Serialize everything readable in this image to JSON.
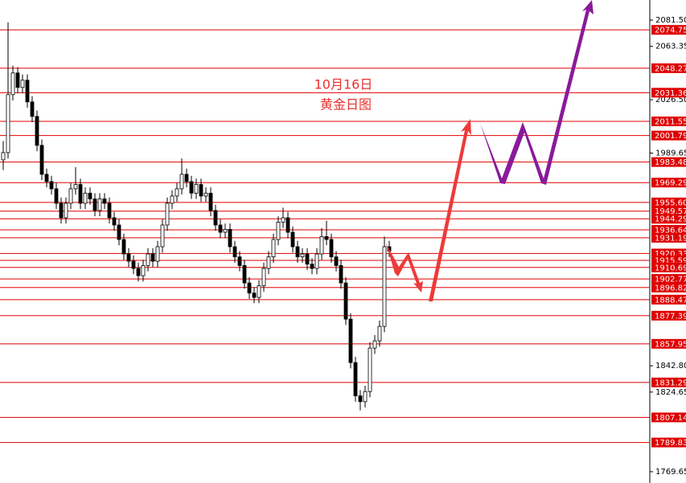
{
  "chart_data": {
    "type": "candlestick",
    "title": "10月16日",
    "subtitle": "黄金日图",
    "ylim": [
      1761.85,
      2095.37
    ],
    "yticks": [
      {
        "value": 2081.5,
        "label": "2081.50"
      },
      {
        "value": 2063.35,
        "label": "2063.35"
      },
      {
        "value": 2026.5,
        "label": "2026.50"
      },
      {
        "value": 1989.65,
        "label": "1989.65"
      },
      {
        "value": 1842.8,
        "label": "1842.80"
      },
      {
        "value": 1824.65,
        "label": "1824.65"
      },
      {
        "value": 1769.65,
        "label": "1769.65"
      }
    ],
    "levels": [
      {
        "value": 2074.75,
        "label": "2074.75"
      },
      {
        "value": 2048.27,
        "label": "2048.27"
      },
      {
        "value": 2031.36,
        "label": "2031.36"
      },
      {
        "value": 2011.55,
        "label": "2011.55"
      },
      {
        "value": 2001.79,
        "label": "2001.79"
      },
      {
        "value": 1983.48,
        "label": "1983.48"
      },
      {
        "value": 1969.29,
        "label": "1969.29"
      },
      {
        "value": 1955.6,
        "label": "1955.60"
      },
      {
        "value": 1949.57,
        "label": "1949.57"
      },
      {
        "value": 1944.29,
        "label": "1944.29"
      },
      {
        "value": 1936.64,
        "label": "1936.64"
      },
      {
        "value": 1931.19,
        "label": "1931.19"
      },
      {
        "value": 1920.33,
        "label": "1920.33"
      },
      {
        "value": 1915.59,
        "label": "1915.59"
      },
      {
        "value": 1910.69,
        "label": "1910.69"
      },
      {
        "value": 1902.77,
        "label": "1902.77"
      },
      {
        "value": 1896.82,
        "label": "1896.82"
      },
      {
        "value": 1888.47,
        "label": "1888.47"
      },
      {
        "value": 1877.39,
        "label": "1877.39"
      },
      {
        "value": 1857.95,
        "label": "1857.95"
      },
      {
        "value": 1831.29,
        "label": "1831.29"
      },
      {
        "value": 1807.14,
        "label": "1807.14"
      },
      {
        "value": 1789.83,
        "label": "1789.83"
      }
    ],
    "level_color": "#e00000",
    "up_color": "#ffffff",
    "down_color": "#000000",
    "candles": [
      [
        1985,
        1998,
        1978,
        1990
      ],
      [
        1990,
        2080,
        1986,
        2030
      ],
      [
        2030,
        2050,
        2026,
        2045
      ],
      [
        2045,
        2049,
        2031,
        2035
      ],
      [
        2035,
        2044,
        2031,
        2040
      ],
      [
        2040,
        2044,
        2021,
        2025
      ],
      [
        2025,
        2029,
        2011,
        2015
      ],
      [
        2015,
        2019,
        1991,
        1995
      ],
      [
        1995,
        1999,
        1971,
        1975
      ],
      [
        1975,
        1979,
        1966,
        1970
      ],
      [
        1970,
        1974,
        1961,
        1965
      ],
      [
        1965,
        1969,
        1951,
        1955
      ],
      [
        1955,
        1959,
        1941,
        1945
      ],
      [
        1945,
        1959,
        1941,
        1955
      ],
      [
        1955,
        1969,
        1951,
        1965
      ],
      [
        1965,
        1980,
        1961,
        1968
      ],
      [
        1968,
        1972,
        1951,
        1955
      ],
      [
        1955,
        1966,
        1951,
        1962
      ],
      [
        1962,
        1966,
        1954,
        1958
      ],
      [
        1958,
        1962,
        1946,
        1950
      ],
      [
        1950,
        1962,
        1946,
        1958
      ],
      [
        1958,
        1962,
        1951,
        1955
      ],
      [
        1955,
        1959,
        1941,
        1945
      ],
      [
        1945,
        1949,
        1936,
        1940
      ],
      [
        1940,
        1944,
        1926,
        1930
      ],
      [
        1930,
        1934,
        1916,
        1920
      ],
      [
        1920,
        1924,
        1911,
        1915
      ],
      [
        1915,
        1919,
        1906,
        1910
      ],
      [
        1910,
        1914,
        1901,
        1905
      ],
      [
        1905,
        1916,
        1901,
        1912
      ],
      [
        1912,
        1924,
        1908,
        1920
      ],
      [
        1920,
        1924,
        1911,
        1915
      ],
      [
        1915,
        1929,
        1911,
        1925
      ],
      [
        1925,
        1944,
        1921,
        1940
      ],
      [
        1940,
        1959,
        1936,
        1955
      ],
      [
        1955,
        1964,
        1951,
        1960
      ],
      [
        1960,
        1969,
        1956,
        1965
      ],
      [
        1965,
        1986,
        1961,
        1975
      ],
      [
        1975,
        1979,
        1966,
        1970
      ],
      [
        1970,
        1974,
        1958,
        1962
      ],
      [
        1962,
        1972,
        1958,
        1968
      ],
      [
        1968,
        1972,
        1956,
        1960
      ],
      [
        1960,
        1966,
        1956,
        1962
      ],
      [
        1962,
        1966,
        1946,
        1950
      ],
      [
        1950,
        1954,
        1936,
        1940
      ],
      [
        1940,
        1944,
        1931,
        1935
      ],
      [
        1935,
        1941,
        1931,
        1937
      ],
      [
        1937,
        1941,
        1921,
        1925
      ],
      [
        1925,
        1929,
        1914,
        1918
      ],
      [
        1918,
        1922,
        1908,
        1912
      ],
      [
        1912,
        1916,
        1896,
        1900
      ],
      [
        1900,
        1904,
        1889,
        1893
      ],
      [
        1893,
        1897,
        1886,
        1890
      ],
      [
        1890,
        1902,
        1886,
        1898
      ],
      [
        1898,
        1914,
        1894,
        1910
      ],
      [
        1910,
        1922,
        1906,
        1918
      ],
      [
        1918,
        1934,
        1914,
        1930
      ],
      [
        1930,
        1946,
        1926,
        1942
      ],
      [
        1942,
        1952,
        1938,
        1945
      ],
      [
        1945,
        1949,
        1931,
        1935
      ],
      [
        1935,
        1939,
        1921,
        1925
      ],
      [
        1925,
        1929,
        1914,
        1918
      ],
      [
        1918,
        1924,
        1914,
        1920
      ],
      [
        1920,
        1924,
        1909,
        1913
      ],
      [
        1913,
        1917,
        1906,
        1910
      ],
      [
        1910,
        1924,
        1906,
        1920
      ],
      [
        1920,
        1938,
        1916,
        1932
      ],
      [
        1932,
        1943,
        1926,
        1930
      ],
      [
        1930,
        1934,
        1914,
        1918
      ],
      [
        1918,
        1922,
        1908,
        1912
      ],
      [
        1912,
        1916,
        1896,
        1900
      ],
      [
        1900,
        1904,
        1871,
        1875
      ],
      [
        1875,
        1879,
        1841,
        1845
      ],
      [
        1845,
        1849,
        1818,
        1822
      ],
      [
        1822,
        1826,
        1812,
        1818
      ],
      [
        1818,
        1829,
        1814,
        1825
      ],
      [
        1825,
        1859,
        1821,
        1855
      ],
      [
        1855,
        1864,
        1851,
        1860
      ],
      [
        1860,
        1874,
        1856,
        1870
      ],
      [
        1870,
        1932,
        1866,
        1925
      ],
      [
        1925,
        1929,
        1918,
        1922
      ]
    ]
  }
}
